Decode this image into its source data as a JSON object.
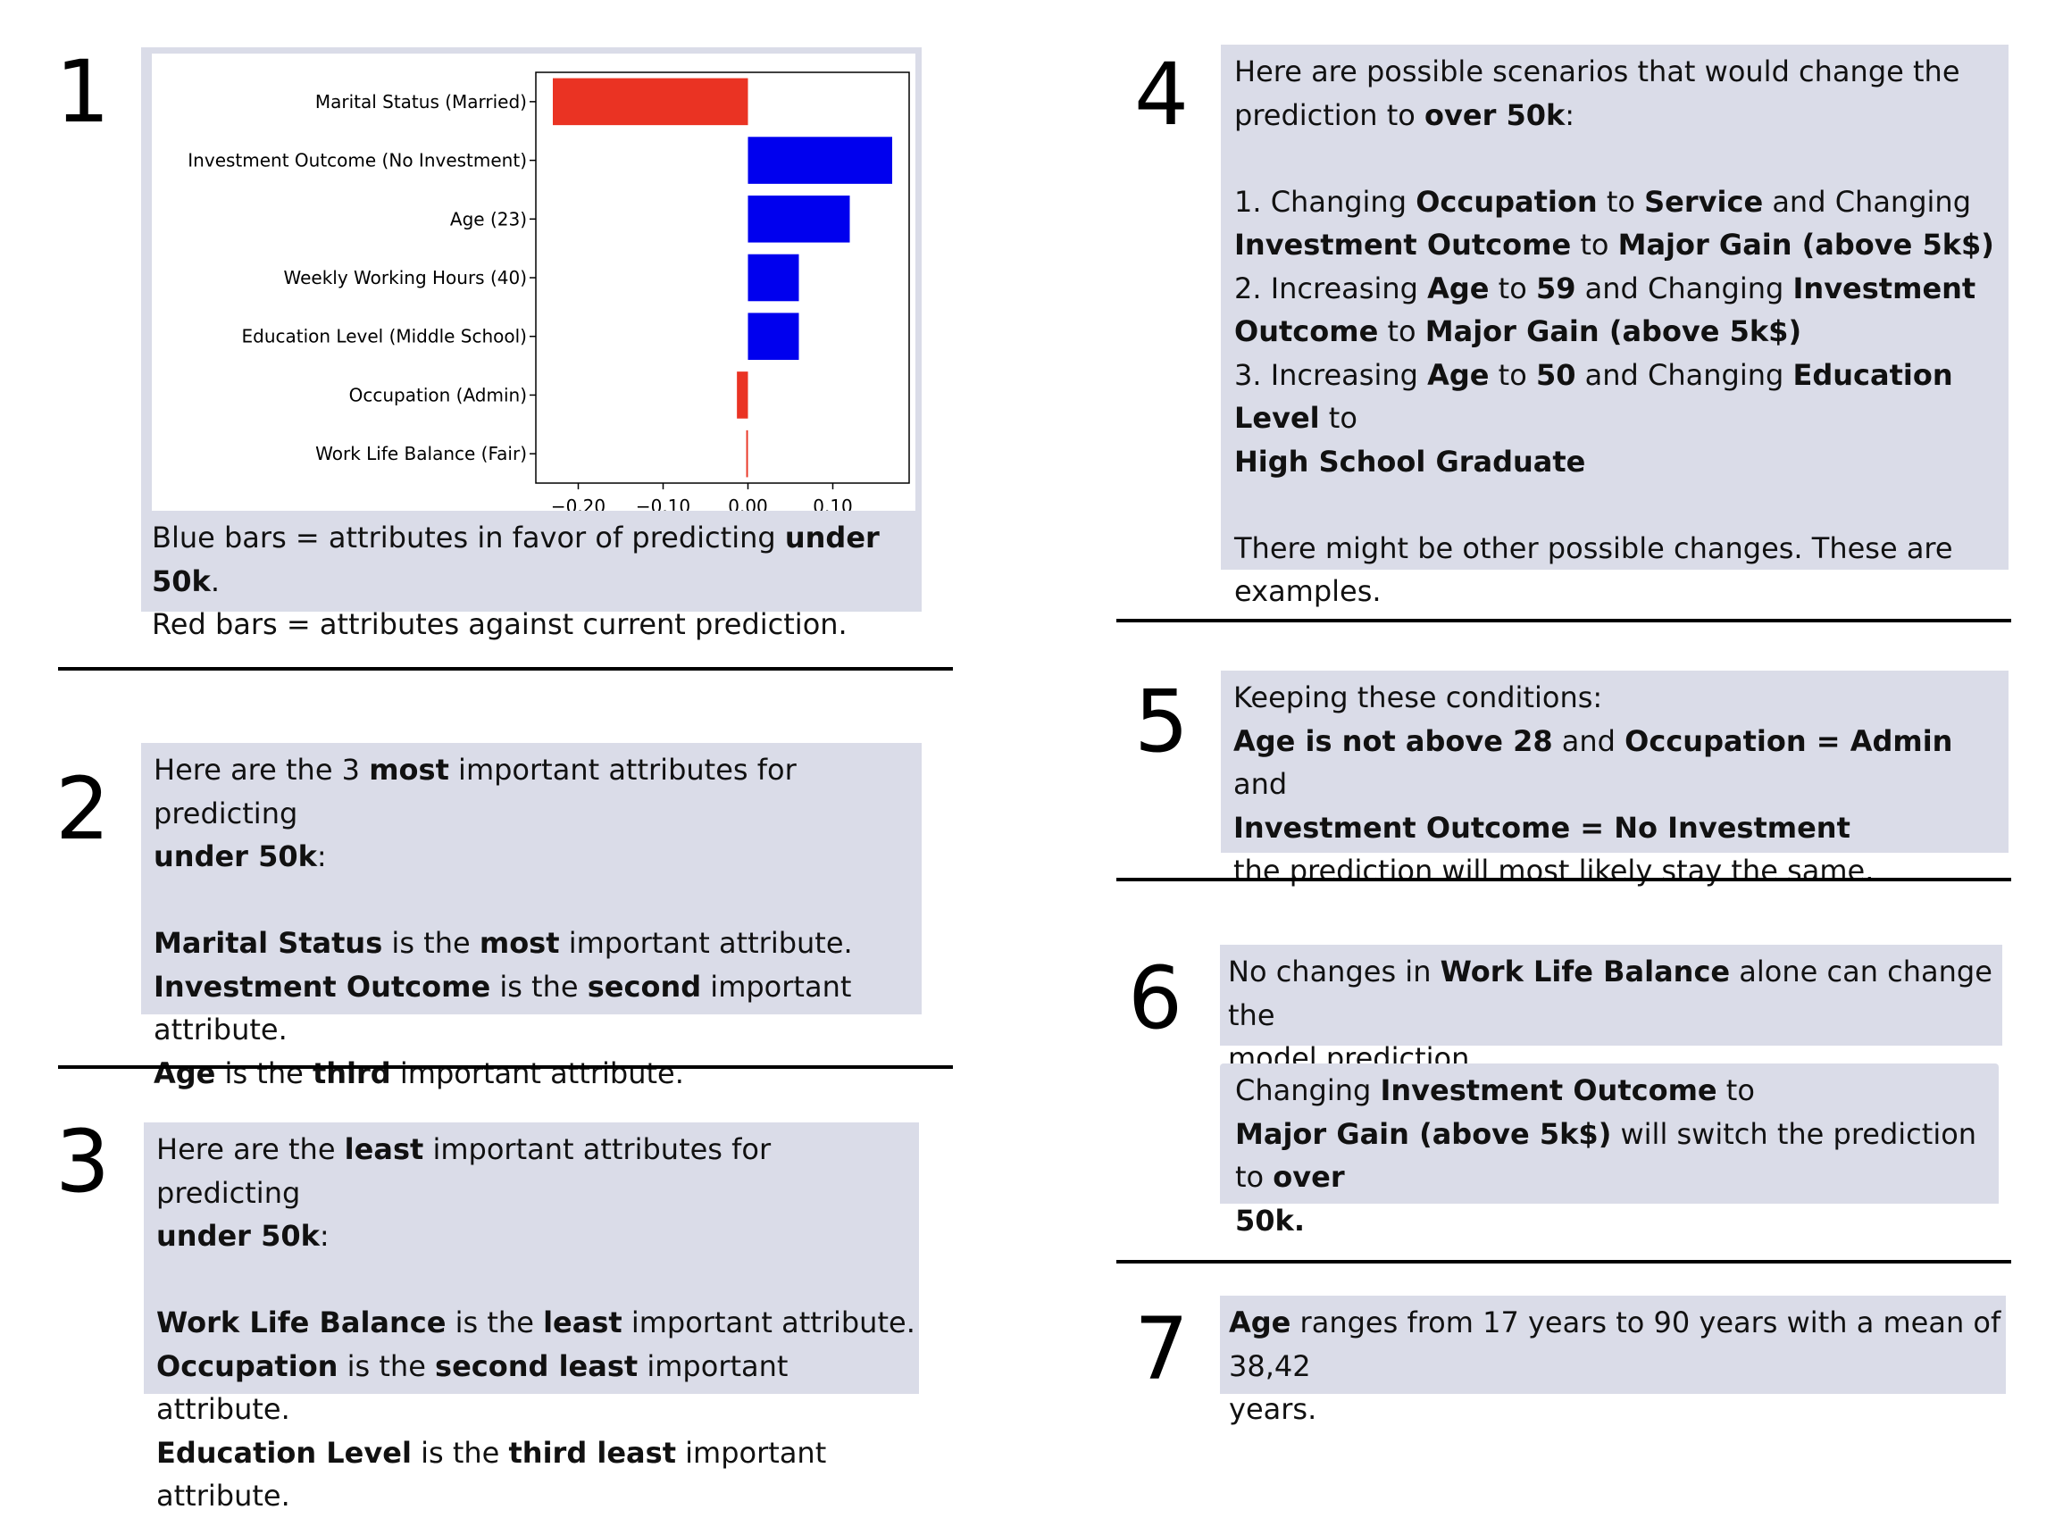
{
  "numbers": [
    "1",
    "2",
    "3",
    "4",
    "5",
    "6",
    "7"
  ],
  "chart_data": {
    "type": "bar",
    "orientation": "horizontal",
    "categories": [
      "Marital Status (Married)",
      "Investment Outcome (No Investment)",
      "Age (23)",
      "Weekly Working Hours (40)",
      "Education Level (Middle School)",
      "Occupation (Admin)",
      "Work Life Balance (Fair)"
    ],
    "values": [
      -0.23,
      0.17,
      0.12,
      0.06,
      0.06,
      -0.013,
      -0.002
    ],
    "xlim": [
      -0.25,
      0.19
    ],
    "xticks": [
      -0.2,
      -0.1,
      0.0,
      0.1
    ],
    "xtick_labels": [
      "−0.20",
      "−0.10",
      "0.00",
      "0.10"
    ],
    "positive_color": "#0000ee",
    "negative_color": "#ea3323",
    "title": "",
    "xlabel": "",
    "ylabel": "",
    "grid": false
  },
  "panel1": {
    "line1_pre": "Blue bars = attributes in favor of predicting ",
    "line1_bold": "under 50k",
    "line1_post": ".",
    "line2": "Red bars = attributes against current prediction."
  },
  "panel2": {
    "l1_a": "Here are the 3 ",
    "l1_b": "most",
    "l1_c": " important attributes for predicting",
    "l2_b": "under 50k",
    "l2_c": ":",
    "l3_b": "Marital Status",
    "l3_c": " is the ",
    "l3_d": "most",
    "l3_e": " important attribute.",
    "l4_b": "Investment Outcome",
    "l4_c": " is the ",
    "l4_d": "second",
    "l4_e": " important attribute.",
    "l5_b": "Age",
    "l5_c": " is the ",
    "l5_d": "third",
    "l5_e": " important attribute."
  },
  "panel3": {
    "l1_a": "Here are the ",
    "l1_b": "least",
    "l1_c": " important attributes for predicting",
    "l2_b": "under 50k",
    "l2_c": ":",
    "l3_b": "Work Life Balance",
    "l3_c": " is the ",
    "l3_d": "least",
    "l3_e": " important attribute.",
    "l4_b": "Occupation",
    "l4_c": " is the ",
    "l4_d": "second least",
    "l4_e": " important attribute.",
    "l5_b": "Education Level",
    "l5_c": " is the ",
    "l5_d": "third least",
    "l5_e": " important attribute."
  },
  "panel4": {
    "l1": "Here are possible scenarios that would change the",
    "l2_a": "prediction to ",
    "l2_b": "over 50k",
    "l2_c": ":",
    "l3_a": "1. Changing ",
    "l3_b": "Occupation",
    "l3_c": " to ",
    "l3_d": "Service",
    "l3_e": " and Changing",
    "l4_b": "Investment Outcome",
    "l4_c": " to ",
    "l4_d": "Major Gain (above 5k$)",
    "l5_a": "2. Increasing ",
    "l5_b": "Age",
    "l5_c": " to ",
    "l5_d": "59",
    "l5_e": " and Changing ",
    "l5_f": "Investment",
    "l6_b": "Outcome",
    "l6_c": " to ",
    "l6_d": "Major Gain (above 5k$)",
    "l7_a": "3. Increasing ",
    "l7_b": "Age",
    "l7_c": " to ",
    "l7_d": "50",
    "l7_e": " and Changing ",
    "l7_f": "Education Level",
    "l7_g": " to",
    "l8_b": "High School Graduate",
    "l9": "There might be other possible changes. These are",
    "l10": "examples."
  },
  "panel5": {
    "l1": "Keeping these conditions:",
    "l2_b": "Age is not above 28",
    "l2_c": " and ",
    "l2_d": "Occupation = Admin",
    "l2_e": " and",
    "l3_b": "Investment Outcome = No Investment",
    "l4": "the prediction will most likely stay the same."
  },
  "panel6a": {
    "l1_a": "No changes in ",
    "l1_b": "Work Life Balance",
    "l1_c": " alone can change the",
    "l2": "model prediction."
  },
  "panel6b": {
    "l1_a": "Changing ",
    "l1_b": "Investment Outcome",
    "l1_c": " to",
    "l2_b": "Major Gain (above 5k$)",
    "l2_c": " will switch the prediction to ",
    "l2_d": "over",
    "l3_b": "50k."
  },
  "panel7": {
    "l1_b": "Age",
    "l1_c": " ranges from 17 years to 90 years with a mean of 38,42",
    "l2": "years."
  }
}
